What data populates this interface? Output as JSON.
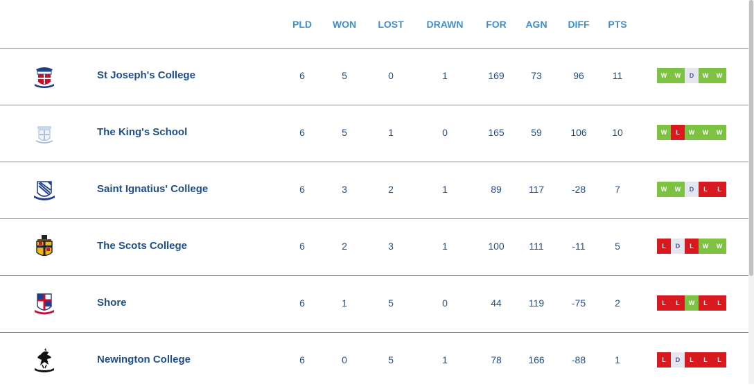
{
  "columns": {
    "pld": "PLD",
    "won": "WON",
    "lost": "LOST",
    "drawn": "DRAWN",
    "for": "FOR",
    "agn": "AGN",
    "diff": "DIFF",
    "pts": "PTS"
  },
  "rows": [
    {
      "team": "St Joseph's College",
      "pld": "6",
      "won": "5",
      "lost": "0",
      "drawn": "1",
      "for": "169",
      "agn": "73",
      "diff": "96",
      "pts": "11",
      "form": [
        "W",
        "W",
        "D",
        "W",
        "W"
      ],
      "crest": "st-josephs-crest"
    },
    {
      "team": "The King's School",
      "pld": "6",
      "won": "5",
      "lost": "1",
      "drawn": "0",
      "for": "165",
      "agn": "59",
      "diff": "106",
      "pts": "10",
      "form": [
        "W",
        "L",
        "W",
        "W",
        "W"
      ],
      "crest": "kings-school-crest"
    },
    {
      "team": "Saint Ignatius' College",
      "pld": "6",
      "won": "3",
      "lost": "2",
      "drawn": "1",
      "for": "89",
      "agn": "117",
      "diff": "-28",
      "pts": "7",
      "form": [
        "W",
        "W",
        "D",
        "L",
        "L"
      ],
      "crest": "saint-ignatius-crest"
    },
    {
      "team": "The Scots College",
      "pld": "6",
      "won": "2",
      "lost": "3",
      "drawn": "1",
      "for": "100",
      "agn": "111",
      "diff": "-11",
      "pts": "5",
      "form": [
        "L",
        "D",
        "L",
        "W",
        "W"
      ],
      "crest": "scots-college-crest"
    },
    {
      "team": "Shore",
      "pld": "6",
      "won": "1",
      "lost": "5",
      "drawn": "0",
      "for": "44",
      "agn": "119",
      "diff": "-75",
      "pts": "2",
      "form": [
        "L",
        "L",
        "W",
        "L",
        "L"
      ],
      "crest": "shore-crest"
    },
    {
      "team": "Newington College",
      "pld": "6",
      "won": "0",
      "lost": "5",
      "drawn": "1",
      "for": "78",
      "agn": "166",
      "diff": "-88",
      "pts": "1",
      "form": [
        "L",
        "D",
        "L",
        "L",
        "L"
      ],
      "crest": "newington-crest"
    }
  ],
  "colors": {
    "win": "#7dc242",
    "loss": "#d71920",
    "draw": "#e6e6ef",
    "header_text": "#3d8fd1",
    "body_text": "#1f4e8c"
  }
}
